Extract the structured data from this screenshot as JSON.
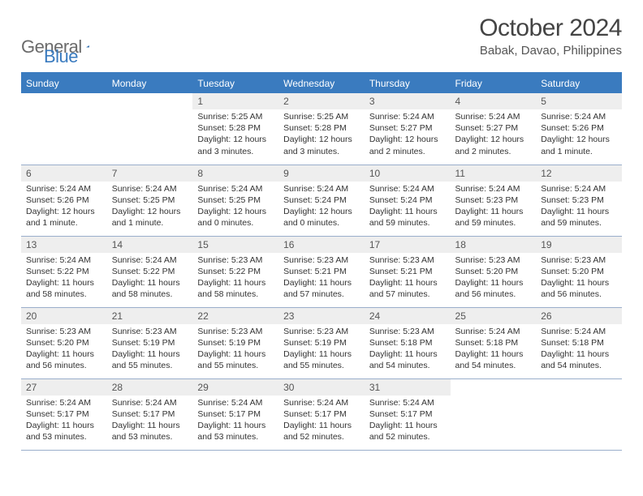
{
  "brand": {
    "word1": "General",
    "word2": "Blue"
  },
  "title": "October 2024",
  "location": "Babak, Davao, Philippines",
  "colors": {
    "accent": "#3a7bbf",
    "daynum_bg": "#eeeeee",
    "row_border": "#9aaecb",
    "text": "#333333",
    "title_text": "#444444",
    "logo_gray": "#6b6b6b",
    "background": "#ffffff"
  },
  "typography": {
    "title_fontsize": 30,
    "location_fontsize": 15,
    "header_fontsize": 12,
    "daynum_fontsize": 12,
    "body_fontsize": 10.5
  },
  "day_headers": [
    "Sunday",
    "Monday",
    "Tuesday",
    "Wednesday",
    "Thursday",
    "Friday",
    "Saturday"
  ],
  "weeks": [
    [
      null,
      null,
      {
        "n": "1",
        "sr": "5:25 AM",
        "ss": "5:28 PM",
        "dl": "12 hours and 3 minutes."
      },
      {
        "n": "2",
        "sr": "5:25 AM",
        "ss": "5:28 PM",
        "dl": "12 hours and 3 minutes."
      },
      {
        "n": "3",
        "sr": "5:24 AM",
        "ss": "5:27 PM",
        "dl": "12 hours and 2 minutes."
      },
      {
        "n": "4",
        "sr": "5:24 AM",
        "ss": "5:27 PM",
        "dl": "12 hours and 2 minutes."
      },
      {
        "n": "5",
        "sr": "5:24 AM",
        "ss": "5:26 PM",
        "dl": "12 hours and 1 minute."
      }
    ],
    [
      {
        "n": "6",
        "sr": "5:24 AM",
        "ss": "5:26 PM",
        "dl": "12 hours and 1 minute."
      },
      {
        "n": "7",
        "sr": "5:24 AM",
        "ss": "5:25 PM",
        "dl": "12 hours and 1 minute."
      },
      {
        "n": "8",
        "sr": "5:24 AM",
        "ss": "5:25 PM",
        "dl": "12 hours and 0 minutes."
      },
      {
        "n": "9",
        "sr": "5:24 AM",
        "ss": "5:24 PM",
        "dl": "12 hours and 0 minutes."
      },
      {
        "n": "10",
        "sr": "5:24 AM",
        "ss": "5:24 PM",
        "dl": "11 hours and 59 minutes."
      },
      {
        "n": "11",
        "sr": "5:24 AM",
        "ss": "5:23 PM",
        "dl": "11 hours and 59 minutes."
      },
      {
        "n": "12",
        "sr": "5:24 AM",
        "ss": "5:23 PM",
        "dl": "11 hours and 59 minutes."
      }
    ],
    [
      {
        "n": "13",
        "sr": "5:24 AM",
        "ss": "5:22 PM",
        "dl": "11 hours and 58 minutes."
      },
      {
        "n": "14",
        "sr": "5:24 AM",
        "ss": "5:22 PM",
        "dl": "11 hours and 58 minutes."
      },
      {
        "n": "15",
        "sr": "5:23 AM",
        "ss": "5:22 PM",
        "dl": "11 hours and 58 minutes."
      },
      {
        "n": "16",
        "sr": "5:23 AM",
        "ss": "5:21 PM",
        "dl": "11 hours and 57 minutes."
      },
      {
        "n": "17",
        "sr": "5:23 AM",
        "ss": "5:21 PM",
        "dl": "11 hours and 57 minutes."
      },
      {
        "n": "18",
        "sr": "5:23 AM",
        "ss": "5:20 PM",
        "dl": "11 hours and 56 minutes."
      },
      {
        "n": "19",
        "sr": "5:23 AM",
        "ss": "5:20 PM",
        "dl": "11 hours and 56 minutes."
      }
    ],
    [
      {
        "n": "20",
        "sr": "5:23 AM",
        "ss": "5:20 PM",
        "dl": "11 hours and 56 minutes."
      },
      {
        "n": "21",
        "sr": "5:23 AM",
        "ss": "5:19 PM",
        "dl": "11 hours and 55 minutes."
      },
      {
        "n": "22",
        "sr": "5:23 AM",
        "ss": "5:19 PM",
        "dl": "11 hours and 55 minutes."
      },
      {
        "n": "23",
        "sr": "5:23 AM",
        "ss": "5:19 PM",
        "dl": "11 hours and 55 minutes."
      },
      {
        "n": "24",
        "sr": "5:23 AM",
        "ss": "5:18 PM",
        "dl": "11 hours and 54 minutes."
      },
      {
        "n": "25",
        "sr": "5:24 AM",
        "ss": "5:18 PM",
        "dl": "11 hours and 54 minutes."
      },
      {
        "n": "26",
        "sr": "5:24 AM",
        "ss": "5:18 PM",
        "dl": "11 hours and 54 minutes."
      }
    ],
    [
      {
        "n": "27",
        "sr": "5:24 AM",
        "ss": "5:17 PM",
        "dl": "11 hours and 53 minutes."
      },
      {
        "n": "28",
        "sr": "5:24 AM",
        "ss": "5:17 PM",
        "dl": "11 hours and 53 minutes."
      },
      {
        "n": "29",
        "sr": "5:24 AM",
        "ss": "5:17 PM",
        "dl": "11 hours and 53 minutes."
      },
      {
        "n": "30",
        "sr": "5:24 AM",
        "ss": "5:17 PM",
        "dl": "11 hours and 52 minutes."
      },
      {
        "n": "31",
        "sr": "5:24 AM",
        "ss": "5:17 PM",
        "dl": "11 hours and 52 minutes."
      },
      null,
      null
    ]
  ],
  "labels": {
    "sunrise": "Sunrise:",
    "sunset": "Sunset:",
    "daylight": "Daylight:"
  }
}
